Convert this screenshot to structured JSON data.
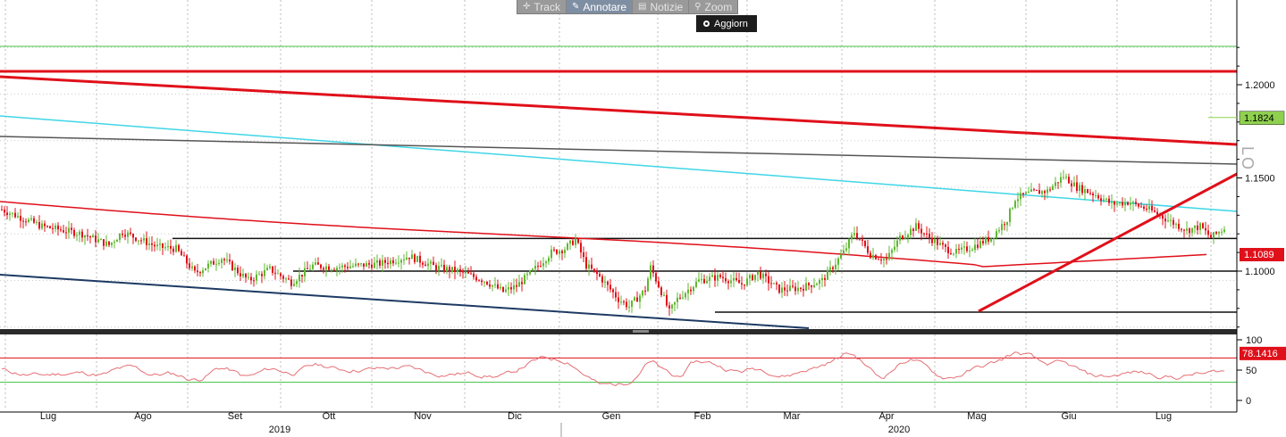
{
  "toolbar": {
    "track": "Track",
    "annotate": "Annotare",
    "news": "Notizie",
    "zoom": "Zoom",
    "refresh": "Aggiorn"
  },
  "side_label": "LO",
  "colors": {
    "up": "#5fb832",
    "down": "#e0101a",
    "ma": "#e0101a",
    "cyan": "#3fd6e6",
    "grid_green": "#40c040",
    "last_price_bg": "#8fd14f",
    "ma_label_bg": "#e0101a",
    "rsi_label_bg": "#e0101a"
  },
  "chart_data": {
    "type": "candlestick",
    "price_axis": {
      "ticks": [
        "1.2000",
        "1.1500",
        "1.1000"
      ],
      "last_price": "1.1824",
      "ma_value": "1.1089"
    },
    "rsi_axis": {
      "ticks": [
        "100",
        "50",
        "0"
      ],
      "value": "78.1416",
      "upper_band": 70,
      "lower_band": 30
    },
    "months": [
      "Lug",
      "Ago",
      "Set",
      "Ott",
      "Nov",
      "Dic",
      "Gen",
      "Feb",
      "Mar",
      "Apr",
      "Mag",
      "Giu",
      "Lug"
    ],
    "years": [
      "2019",
      "2020"
    ],
    "price_path": [
      [
        0,
        1.133
      ],
      [
        15,
        1.124
      ],
      [
        30,
        1.12
      ],
      [
        40,
        1.114
      ],
      [
        45,
        1.121
      ],
      [
        58,
        1.113
      ],
      [
        65,
        1.112
      ],
      [
        72,
        1.099
      ],
      [
        82,
        1.107
      ],
      [
        92,
        1.095
      ],
      [
        100,
        1.101
      ],
      [
        108,
        1.094
      ],
      [
        116,
        1.103
      ],
      [
        124,
        1.102
      ],
      [
        133,
        1.103
      ],
      [
        141,
        1.104
      ],
      [
        152,
        1.108
      ],
      [
        162,
        1.102
      ],
      [
        170,
        1.1
      ],
      [
        180,
        1.095
      ],
      [
        187,
        1.089
      ],
      [
        192,
        1.092
      ],
      [
        198,
        1.1
      ],
      [
        205,
        1.11
      ],
      [
        210,
        1.112
      ],
      [
        214,
        1.117
      ],
      [
        218,
        1.103
      ],
      [
        223,
        1.097
      ],
      [
        230,
        1.085
      ],
      [
        234,
        1.081
      ],
      [
        240,
        1.09
      ],
      [
        242,
        1.102
      ],
      [
        246,
        1.089
      ],
      [
        249,
        1.078
      ],
      [
        252,
        1.085
      ],
      [
        256,
        1.09
      ],
      [
        260,
        1.095
      ],
      [
        268,
        1.097
      ],
      [
        276,
        1.093
      ],
      [
        282,
        1.099
      ],
      [
        290,
        1.09
      ],
      [
        298,
        1.091
      ],
      [
        306,
        1.095
      ],
      [
        314,
        1.11
      ],
      [
        318,
        1.121
      ],
      [
        324,
        1.109
      ],
      [
        330,
        1.106
      ],
      [
        335,
        1.118
      ],
      [
        341,
        1.124
      ],
      [
        345,
        1.119
      ],
      [
        352,
        1.112
      ],
      [
        356,
        1.11
      ],
      [
        362,
        1.113
      ],
      [
        369,
        1.118
      ],
      [
        375,
        1.128
      ],
      [
        378,
        1.139
      ],
      [
        384,
        1.142
      ],
      [
        390,
        1.143
      ],
      [
        396,
        1.151
      ],
      [
        401,
        1.145
      ],
      [
        408,
        1.141
      ],
      [
        414,
        1.136
      ],
      [
        420,
        1.137
      ],
      [
        428,
        1.133
      ],
      [
        433,
        1.129
      ],
      [
        438,
        1.125
      ],
      [
        442,
        1.122
      ],
      [
        447,
        1.124
      ],
      [
        451,
        1.118
      ],
      [
        456,
        1.123
      ]
    ],
    "trendlines": [
      {
        "name": "red-upper-channel",
        "color": "#e0101a"
      },
      {
        "name": "cyan-channel",
        "color": "#3fd6e6"
      },
      {
        "name": "grey-channel",
        "color": "#555555"
      },
      {
        "name": "navy-channel",
        "color": "#1d3a63"
      },
      {
        "name": "red-uptrend",
        "color": "#e0101a"
      }
    ],
    "horizontal_levels": [
      1.2085,
      1.2255,
      1.1175,
      1.1,
      1.078
    ]
  }
}
